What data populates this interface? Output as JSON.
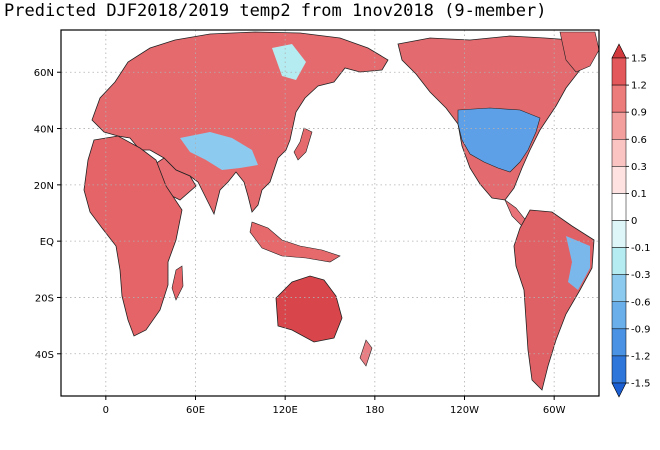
{
  "title": "Predicted DJF2018/2019 temp2 from 1nov2018 (9-member)",
  "map": {
    "lat_ticks": [
      {
        "lat": 60,
        "label": "60N"
      },
      {
        "lat": 40,
        "label": "40N"
      },
      {
        "lat": 20,
        "label": "20N"
      },
      {
        "lat": 0,
        "label": "EQ"
      },
      {
        "lat": -20,
        "label": "20S"
      },
      {
        "lat": -40,
        "label": "40S"
      }
    ],
    "lon_ticks": [
      {
        "lon": 0,
        "label": "0"
      },
      {
        "lon": 60,
        "label": "60E"
      },
      {
        "lon": 120,
        "label": "120E"
      },
      {
        "lon": 180,
        "label": "180"
      },
      {
        "lon": 240,
        "label": "120W"
      },
      {
        "lon": 300,
        "label": "60W"
      }
    ],
    "lon_range": [
      -30,
      330
    ],
    "lat_range": [
      -55,
      75
    ],
    "grid": true
  },
  "colorbar": {
    "levels": [
      "1.5",
      "1.2",
      "0.9",
      "0.6",
      "0.3",
      "0.1",
      "0",
      "-0.1",
      "-0.3",
      "-0.6",
      "-0.9",
      "-1.2",
      "-1.5"
    ],
    "colors": [
      "#d23a3e",
      "#e3585a",
      "#ec7b7b",
      "#f39f9d",
      "#f9c4c2",
      "#fde2e1",
      "#ffffff",
      "#def6f8",
      "#b4ecf2",
      "#8ccbef",
      "#6aaeea",
      "#4a92e3",
      "#2f76db",
      "#1c5fd2"
    ]
  },
  "colors": {
    "ocean": "#ffffff",
    "border": "#000000",
    "grid": "#b0b0b0"
  }
}
